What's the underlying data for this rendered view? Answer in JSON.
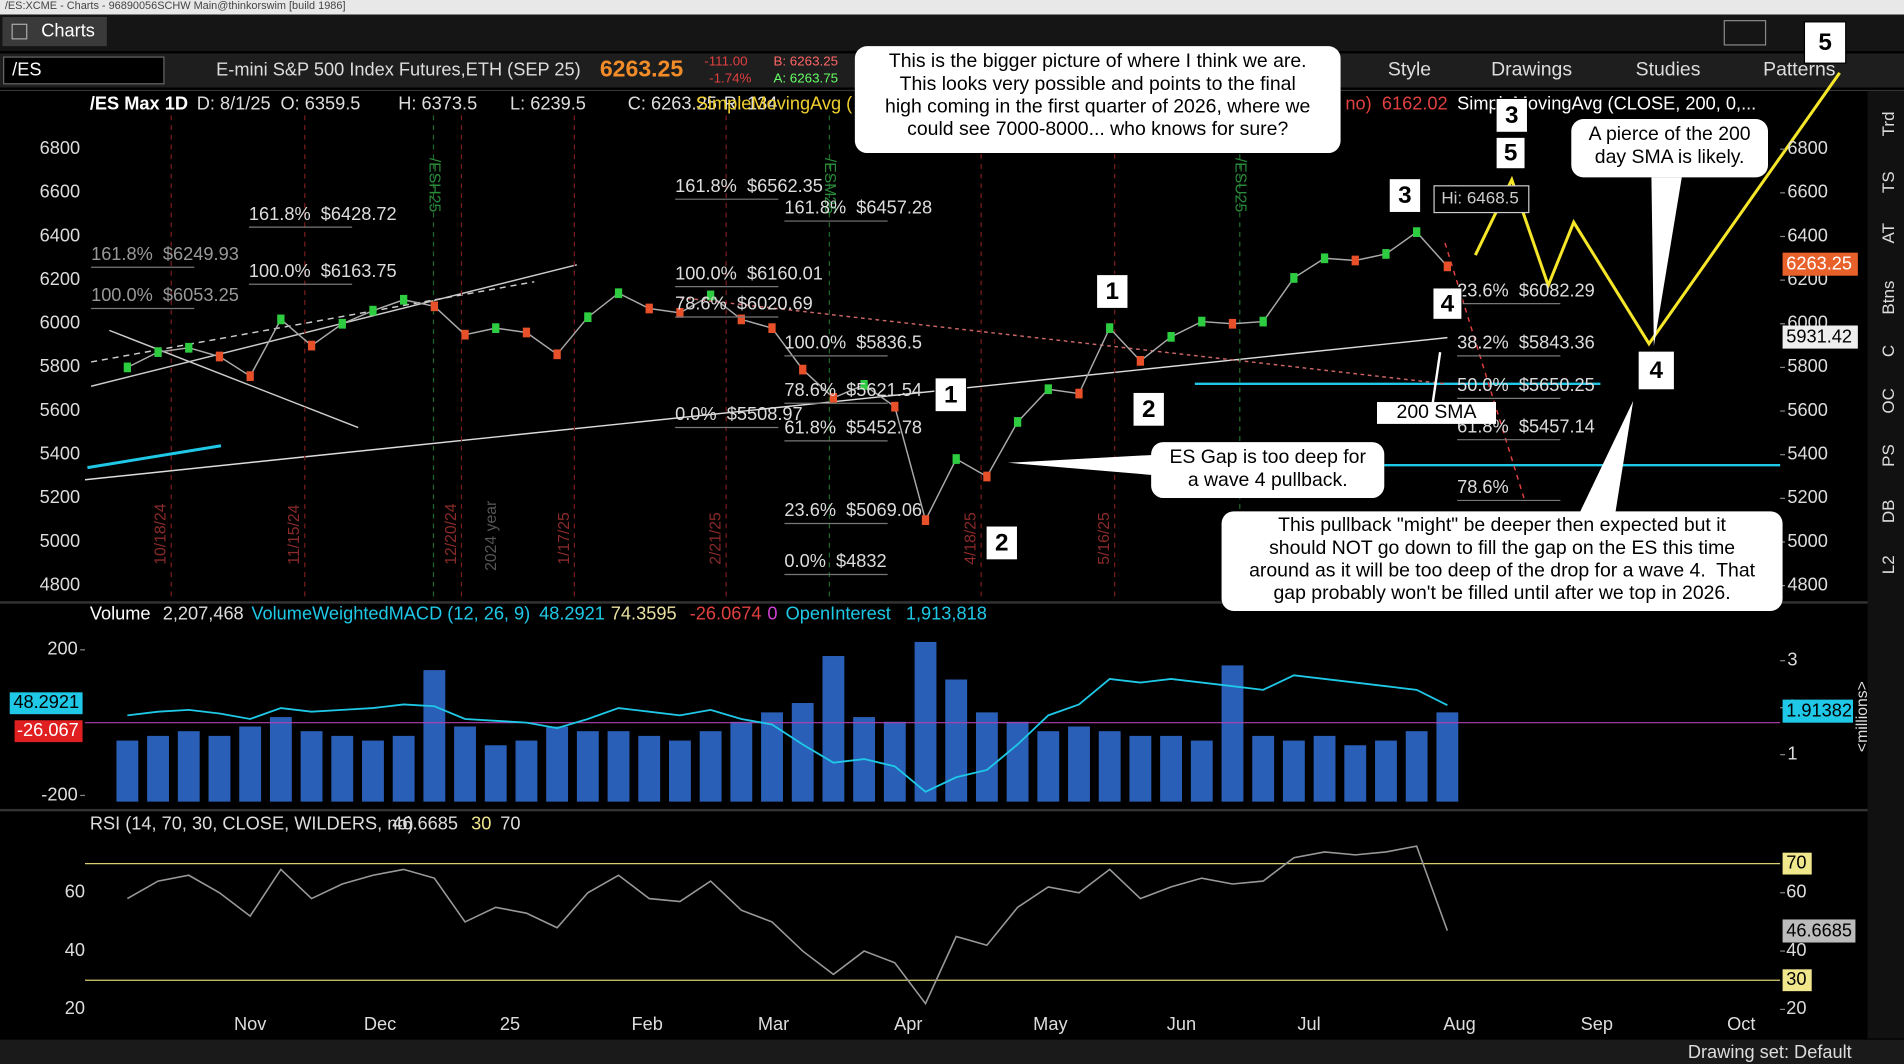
{
  "window": {
    "title": "/ES:XCME - Charts - 96890056SCHW Main@thinkorswim [build 1986]",
    "tab": "Charts"
  },
  "toolbar": {
    "symbol": "/ES",
    "description": "E-mini S&P 500 Index Futures,ETH (SEP 25)",
    "last": "6263.25",
    "change": "-111.00",
    "change_pct": "-1.74%",
    "bid": "B: 6263.25",
    "ask": "A: 6263.75",
    "buttons": [
      "Style",
      "Drawings",
      "Studies",
      "Patterns"
    ]
  },
  "chart_header": {
    "symbol": "/ES Max 1D",
    "fields": [
      "D: 8/1/25",
      "O: 6359.5",
      "H: 6373.5",
      "L: 6239.5",
      "C: 6263.25",
      "R: 134"
    ],
    "study1": "SimpleMovingAvg (",
    "study1_tail": "no)",
    "study1_value": "6162.02",
    "study2": "SimpleMovingAvg (CLOSE, 200, 0,..."
  },
  "price_panel": {
    "ylim": [
      4745,
      6955
    ],
    "yticks": [
      4800,
      5000,
      5200,
      5400,
      5600,
      5800,
      6000,
      6200,
      6400,
      6600,
      6800
    ],
    "closes": [
      5800,
      5870,
      5890,
      5850,
      5760,
      6020,
      5900,
      6000,
      6060,
      6110,
      6080,
      5950,
      5980,
      5960,
      5860,
      6030,
      6140,
      6070,
      6050,
      6130,
      6020,
      5980,
      5790,
      5660,
      5720,
      5620,
      5100,
      5380,
      5300,
      5550,
      5700,
      5680,
      5980,
      5830,
      5940,
      6010,
      6000,
      6010,
      6210,
      6300,
      6290,
      6320,
      6420,
      6263
    ],
    "last_label": "6263.25",
    "level_label": "5931.42",
    "x_labels": [
      "Nov",
      "Dec",
      "25",
      "Feb",
      "Mar",
      "Apr",
      "May",
      "Jun",
      "Jul",
      "Aug",
      "Sep",
      "Oct"
    ],
    "date_markers": [
      "10/18/24",
      "11/15/24",
      "12/20/24",
      "1/17/25",
      "2/21/25",
      "4/18/25",
      "5/16/25"
    ],
    "year_marker": "2024 year",
    "contract_markers": [
      "/ESH25",
      "/ESM25",
      "/ESU25"
    ],
    "fib_labels": [
      "161.8%  $6249.93",
      "100.0%  $6053.25",
      "161.8%  $6428.72",
      "100.0%  $6163.75",
      "161.8%  $6562.35",
      "161.8%  $6457.28",
      "100.0%  $6160.01",
      "78.6%  $6020.69",
      "100.0%  $5836.5",
      "78.6%  $5621.54",
      "0.0%  $5508.97",
      "61.8%  $5452.78",
      "23.6%  $5069.06",
      "0.0%  $4832",
      "23.6%  $6082.29",
      "38.2%  $5843.36",
      "50.0%  $5650.25",
      "61.8%  $5457.14",
      "78.6%"
    ],
    "wave_labels": [
      "1",
      "2",
      "1",
      "2",
      "3",
      "4",
      "3",
      "5",
      "4",
      "5"
    ],
    "high_label": "Hi: 6468.5",
    "sma_label": "200 SMA",
    "notes": [
      {
        "lines": [
          "This is the bigger picture of where I think we are.",
          "This looks very possible and points to the final",
          "high coming in the first quarter of 2026, where we",
          "could see 7000-8000... who knows for sure?"
        ]
      },
      {
        "lines": [
          "ES Gap is too deep for",
          "a wave 4 pullback."
        ]
      },
      {
        "lines": [
          "A pierce of the 200",
          "day SMA is likely."
        ]
      },
      {
        "lines": [
          "This pullback \"might\" be deeper then expected but it",
          "should NOT go down to fill the gap on the ES this time",
          "around as it will be too deep of the drop for a wave 4.  That",
          "gap probably won't be filled until after we top in 2026."
        ]
      }
    ]
  },
  "lower_panel": {
    "header": [
      "Volume",
      "2,207,468",
      "VolumeWeightedMACD (12, 26, 9)",
      "48.2921",
      "74.3595",
      "-26.0674",
      "0",
      "OpenInterest",
      "1,913,818"
    ],
    "macd_ylim": [
      -217,
      250
    ],
    "macd_ticks": [
      -200,
      200
    ],
    "vol_ylim": [
      0,
      3.62
    ],
    "vol_ticks": [
      1,
      2,
      3
    ],
    "macd_label": "48.2921",
    "diff_label": "-26.067",
    "oi_label": "1.91382",
    "unit": "<millions>",
    "volume": [
      1.3,
      1.4,
      1.5,
      1.4,
      1.6,
      1.8,
      1.5,
      1.4,
      1.3,
      1.4,
      2.8,
      1.6,
      1.2,
      1.3,
      1.6,
      1.5,
      1.5,
      1.4,
      1.3,
      1.5,
      1.7,
      1.9,
      2.1,
      3.1,
      1.8,
      1.7,
      3.4,
      2.6,
      1.9,
      1.7,
      1.5,
      1.6,
      1.5,
      1.4,
      1.4,
      1.3,
      2.9,
      1.4,
      1.3,
      1.4,
      1.2,
      1.3,
      1.5,
      1.9
    ],
    "macd": [
      20,
      30,
      35,
      25,
      10,
      40,
      30,
      35,
      40,
      50,
      45,
      10,
      5,
      0,
      -15,
      10,
      40,
      30,
      20,
      35,
      10,
      -5,
      -60,
      -110,
      -100,
      -120,
      -190,
      -150,
      -130,
      -60,
      20,
      50,
      120,
      110,
      120,
      110,
      100,
      90,
      130,
      120,
      110,
      100,
      90,
      48
    ]
  },
  "rsi_panel": {
    "header": [
      "RSI (14, 70, 30, CLOSE, WILDERS, no)",
      "46.6685",
      "30",
      "70"
    ],
    "ylim": [
      19.6,
      78.75
    ],
    "yticks": [
      20,
      30,
      40,
      60,
      70
    ],
    "values": [
      58,
      64,
      66,
      60,
      52,
      68,
      58,
      63,
      66,
      68,
      65,
      50,
      55,
      53,
      48,
      60,
      66,
      58,
      57,
      64,
      54,
      50,
      40,
      32,
      40,
      36,
      22,
      45,
      42,
      55,
      62,
      60,
      68,
      58,
      62,
      65,
      63,
      64,
      72,
      74,
      73,
      74,
      76,
      47
    ],
    "last_label": "46.6685"
  },
  "sidebar": [
    "Trd",
    "TS",
    "AT",
    "Btns",
    "C",
    "OC",
    "PS",
    "DB",
    "L2"
  ],
  "status": "Drawing set: Default"
}
